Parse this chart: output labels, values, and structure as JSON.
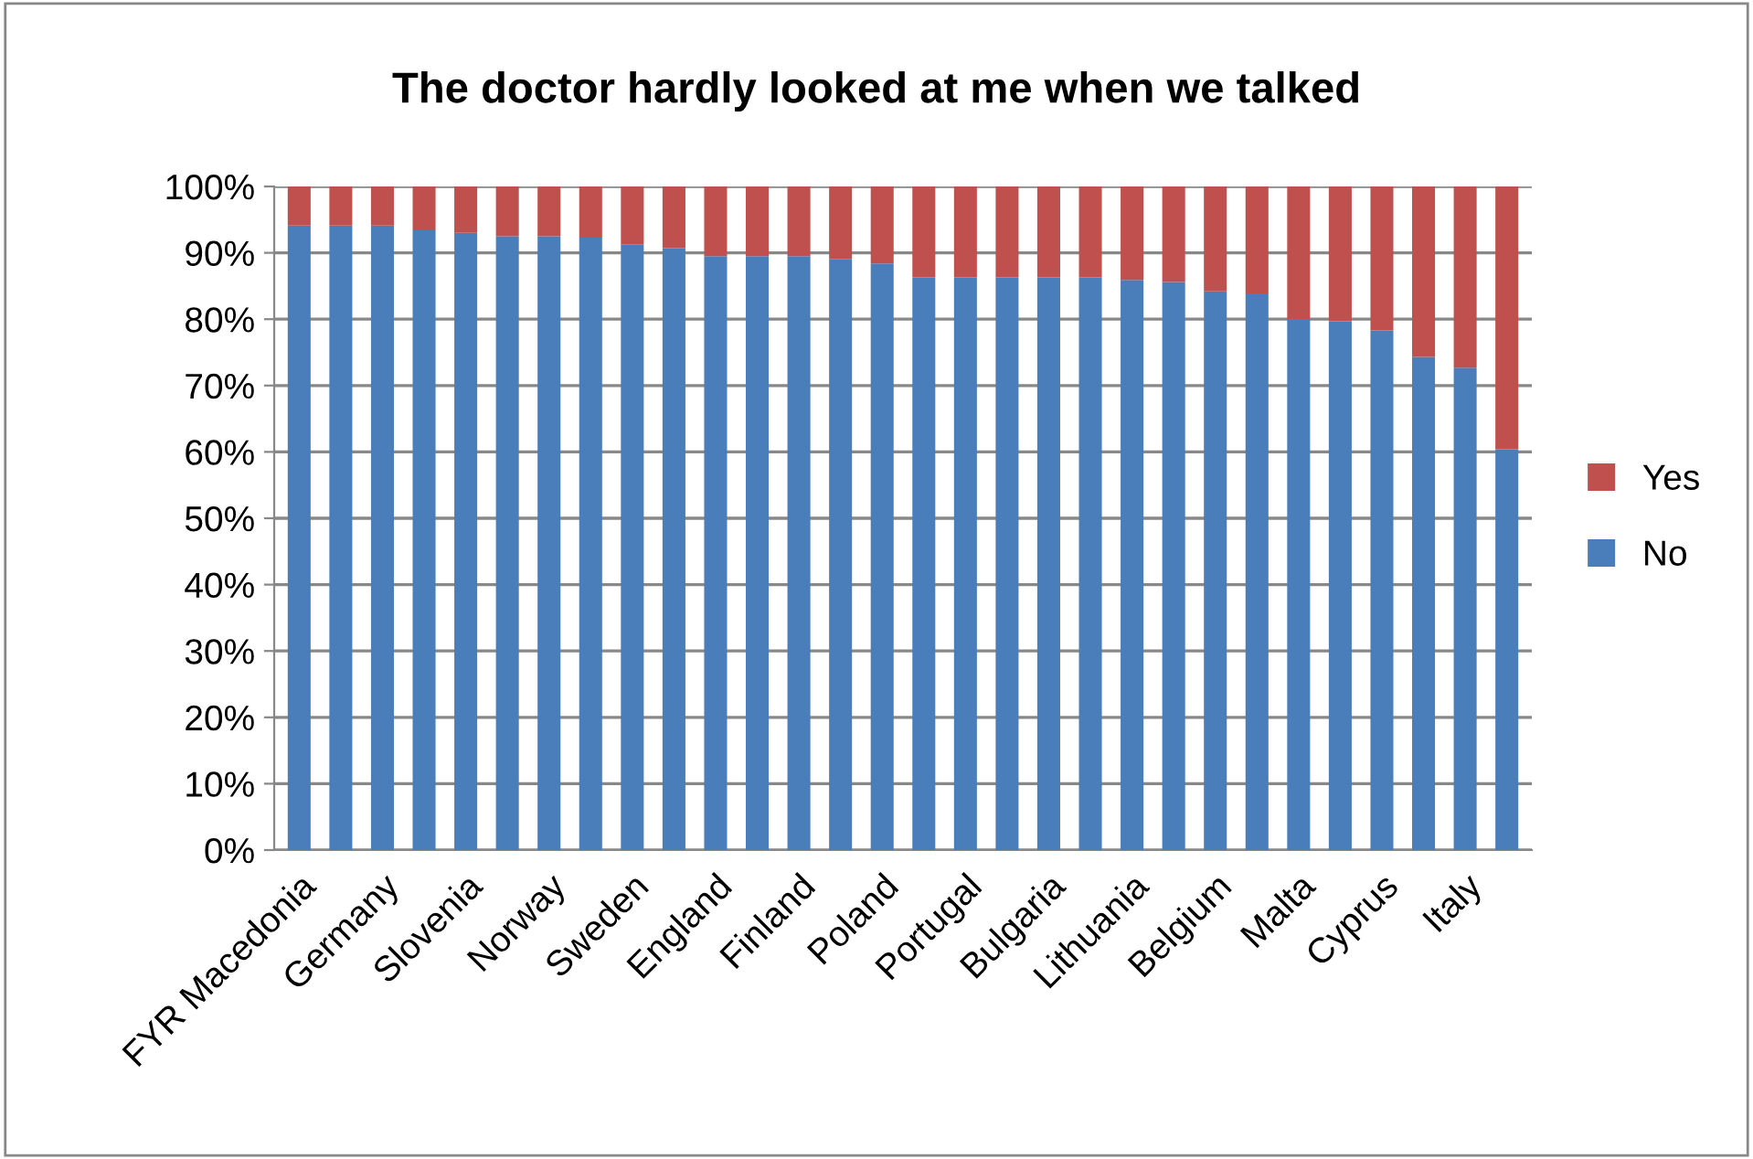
{
  "chart_data": {
    "type": "bar",
    "title": "The doctor hardly looked at me when we talked",
    "categories": [
      "FYR Macedonia",
      null,
      "Germany",
      null,
      "Slovenia",
      null,
      "Norway",
      null,
      "Sweden",
      null,
      "England",
      null,
      "Finland",
      null,
      "Poland",
      null,
      "Portugal",
      null,
      "Bulgaria",
      null,
      "Lithuania",
      null,
      "Belgium",
      null,
      "Malta",
      null,
      "Cyprus",
      null,
      "Italy",
      null
    ],
    "stacked": true,
    "series": [
      {
        "name": "No",
        "color": "#4a7ebb",
        "values": [
          94.1,
          94.1,
          94.1,
          93.4,
          93.0,
          92.5,
          92.5,
          92.3,
          91.3,
          90.7,
          89.5,
          89.5,
          89.5,
          89.1,
          88.4,
          86.3,
          86.3,
          86.3,
          86.3,
          86.3,
          85.9,
          85.6,
          84.2,
          83.9,
          80.0,
          79.7,
          78.3,
          74.3,
          72.7,
          60.4
        ]
      },
      {
        "name": "Yes",
        "color": "#c0504d",
        "values": [
          5.9,
          5.9,
          5.9,
          6.6,
          7.0,
          7.5,
          7.5,
          7.7,
          8.7,
          9.3,
          10.5,
          10.5,
          10.5,
          10.9,
          11.6,
          13.7,
          13.7,
          13.7,
          13.7,
          13.7,
          14.1,
          14.4,
          15.8,
          16.1,
          20.0,
          20.3,
          21.7,
          25.7,
          27.3,
          39.6
        ]
      }
    ],
    "ylim": [
      0,
      100
    ],
    "yticks": [
      {
        "value": 0,
        "label": "0%"
      },
      {
        "value": 10,
        "label": "10%"
      },
      {
        "value": 20,
        "label": "20%"
      },
      {
        "value": 30,
        "label": "30%"
      },
      {
        "value": 40,
        "label": "40%"
      },
      {
        "value": 50,
        "label": "50%"
      },
      {
        "value": 60,
        "label": "60%"
      },
      {
        "value": 70,
        "label": "70%"
      },
      {
        "value": 80,
        "label": "80%"
      },
      {
        "value": 90,
        "label": "90%"
      },
      {
        "value": 100,
        "label": "100%"
      }
    ],
    "grid": "y",
    "legend": "right"
  }
}
